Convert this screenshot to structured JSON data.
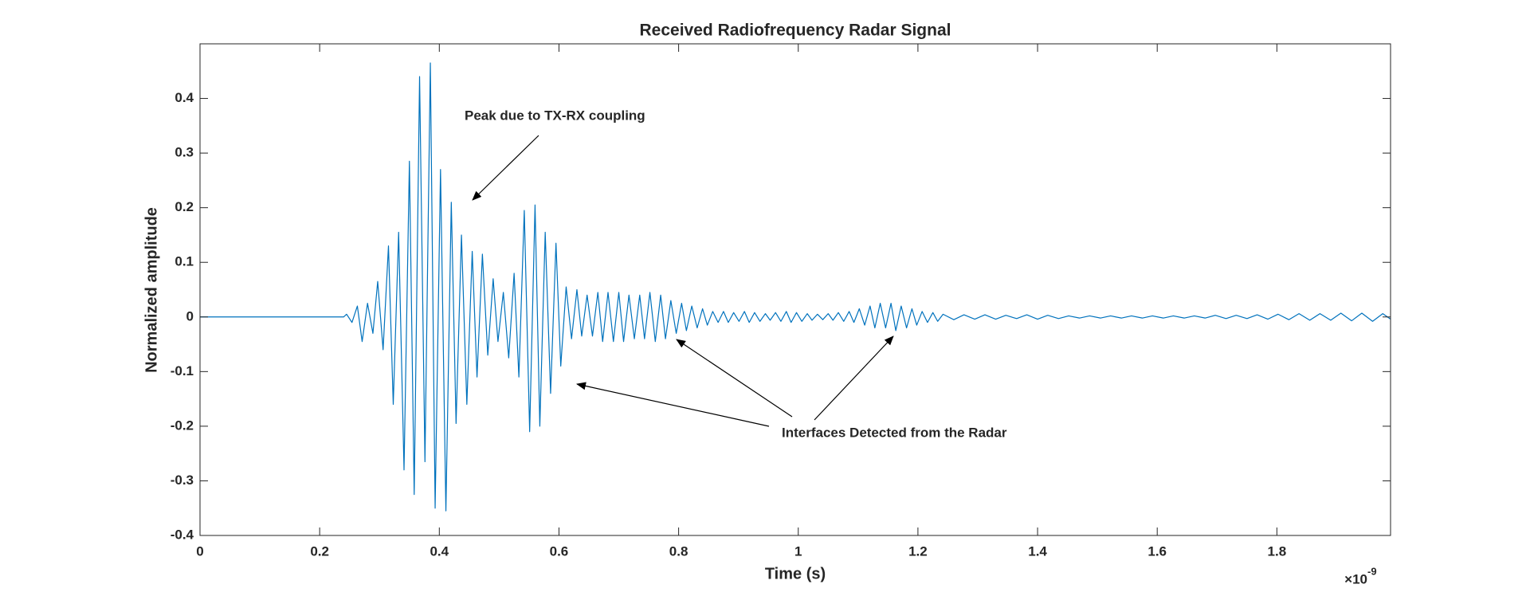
{
  "chart_data": {
    "type": "line",
    "title": "Received Radiofrequency Radar Signal",
    "x_label": "Time (s)",
    "y_label": "Normalized amplitude",
    "x_multiplier_base": "×10",
    "x_multiplier_exponent": "-9",
    "annotations": [
      "Peak due to TX-RX coupling",
      "Interfaces Detected from the Radar"
    ],
    "color": "#0072bd",
    "xlim": [
      0,
      1.99
    ],
    "xticks": [
      0,
      0.2,
      0.4,
      0.6,
      0.8,
      1,
      1.2,
      1.4,
      1.6,
      1.8
    ],
    "ylim": [
      -0.4,
      0.5
    ],
    "yticks": [
      -0.4,
      -0.3,
      -0.2,
      -0.1,
      0,
      0.1,
      0.2,
      0.3,
      0.4
    ],
    "grid": false,
    "x": [
      0,
      0.1,
      0.2,
      0.24,
      0.245,
      0.254,
      0.263,
      0.271,
      0.28,
      0.289,
      0.297,
      0.306,
      0.315,
      0.323,
      0.332,
      0.341,
      0.35,
      0.358,
      0.367,
      0.376,
      0.385,
      0.393,
      0.402,
      0.411,
      0.42,
      0.428,
      0.437,
      0.446,
      0.455,
      0.463,
      0.472,
      0.481,
      0.49,
      0.498,
      0.507,
      0.516,
      0.525,
      0.533,
      0.542,
      0.551,
      0.56,
      0.568,
      0.577,
      0.586,
      0.595,
      0.603,
      0.612,
      0.621,
      0.63,
      0.638,
      0.647,
      0.656,
      0.665,
      0.673,
      0.682,
      0.691,
      0.7,
      0.708,
      0.717,
      0.726,
      0.735,
      0.743,
      0.752,
      0.761,
      0.77,
      0.778,
      0.787,
      0.796,
      0.805,
      0.813,
      0.822,
      0.831,
      0.84,
      0.848,
      0.857,
      0.866,
      0.875,
      0.883,
      0.892,
      0.901,
      0.91,
      0.918,
      0.927,
      0.936,
      0.945,
      0.953,
      0.962,
      0.971,
      0.98,
      0.988,
      0.997,
      1.006,
      1.015,
      1.023,
      1.032,
      1.041,
      1.05,
      1.058,
      1.067,
      1.076,
      1.085,
      1.093,
      1.102,
      1.111,
      1.12,
      1.128,
      1.137,
      1.146,
      1.155,
      1.163,
      1.172,
      1.181,
      1.19,
      1.198,
      1.207,
      1.216,
      1.225,
      1.233,
      1.242,
      1.26,
      1.277,
      1.295,
      1.312,
      1.33,
      1.347,
      1.365,
      1.382,
      1.4,
      1.417,
      1.435,
      1.452,
      1.47,
      1.487,
      1.505,
      1.522,
      1.54,
      1.557,
      1.575,
      1.592,
      1.61,
      1.627,
      1.645,
      1.662,
      1.68,
      1.697,
      1.715,
      1.732,
      1.75,
      1.767,
      1.785,
      1.802,
      1.82,
      1.837,
      1.855,
      1.872,
      1.89,
      1.907,
      1.925,
      1.942,
      1.96,
      1.977,
      1.99
    ],
    "values": [
      0,
      0,
      0,
      0,
      0.005,
      -0.01,
      0.02,
      -0.045,
      0.025,
      -0.03,
      0.065,
      -0.06,
      0.13,
      -0.16,
      0.155,
      -0.28,
      0.285,
      -0.325,
      0.44,
      -0.265,
      0.465,
      -0.35,
      0.27,
      -0.355,
      0.21,
      -0.195,
      0.15,
      -0.16,
      0.12,
      -0.11,
      0.115,
      -0.07,
      0.07,
      -0.045,
      0.045,
      -0.075,
      0.08,
      -0.11,
      0.195,
      -0.21,
      0.205,
      -0.2,
      0.155,
      -0.14,
      0.135,
      -0.09,
      0.055,
      -0.04,
      0.05,
      -0.035,
      0.04,
      -0.035,
      0.045,
      -0.045,
      0.045,
      -0.045,
      0.045,
      -0.045,
      0.04,
      -0.04,
      0.04,
      -0.04,
      0.045,
      -0.045,
      0.04,
      -0.04,
      0.03,
      -0.03,
      0.025,
      -0.025,
      0.02,
      -0.02,
      0.015,
      -0.015,
      0.01,
      -0.01,
      0.01,
      -0.01,
      0.008,
      -0.008,
      0.01,
      -0.01,
      0.008,
      -0.008,
      0.006,
      -0.006,
      0.008,
      -0.008,
      0.01,
      -0.01,
      0.008,
      -0.008,
      0.006,
      -0.006,
      0.005,
      -0.005,
      0.006,
      -0.006,
      0.008,
      -0.008,
      0.01,
      -0.01,
      0.015,
      -0.015,
      0.02,
      -0.02,
      0.025,
      -0.02,
      0.025,
      -0.025,
      0.02,
      -0.02,
      0.015,
      -0.015,
      0.01,
      -0.01,
      0.008,
      -0.008,
      0.005,
      -0.005,
      0.004,
      -0.004,
      0.004,
      -0.004,
      0.003,
      -0.003,
      0.004,
      -0.004,
      0.003,
      -0.003,
      0.002,
      -0.002,
      0.002,
      -0.002,
      0.002,
      -0.002,
      0.002,
      -0.002,
      0.002,
      -0.002,
      0.002,
      -0.002,
      0.002,
      -0.002,
      0.003,
      -0.003,
      0.003,
      -0.003,
      0.004,
      -0.004,
      0.005,
      -0.005,
      0.006,
      -0.006,
      0.006,
      -0.006,
      0.007,
      -0.007,
      0.007,
      -0.008,
      0.006,
      -0.004
    ]
  }
}
